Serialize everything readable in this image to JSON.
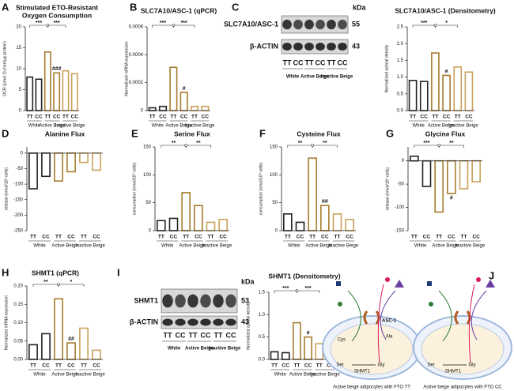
{
  "style": {
    "bar_colors": [
      "#222222",
      "#222222",
      "#a57c2c",
      "#a57c2c",
      "#c9a15a",
      "#c9a15a"
    ],
    "label_colors": [
      "#111111",
      "#e0201b"
    ],
    "transporter_color": "#d9702a"
  },
  "chart_data": [
    {
      "type": "bar",
      "panel": "A",
      "title": [
        "Stimulated ETO-Resistant",
        "Oxygen Consumption"
      ],
      "y_label": "OCR (pmol O₂/min/µg protein)",
      "categories": [
        "TT",
        "CC",
        "TT",
        "CC",
        "TT",
        "CC"
      ],
      "groups": [
        "White",
        "Active Beige",
        "Inactive Beige"
      ],
      "values": [
        8,
        7.5,
        14,
        9,
        9.5,
        8.8
      ],
      "ylim": [
        0,
        20
      ],
      "yticks": [
        0,
        5,
        10,
        15,
        20
      ],
      "bracket": [
        "***",
        "***"
      ],
      "bar_marks": [
        null,
        null,
        null,
        "###",
        null,
        null
      ]
    },
    {
      "type": "bar",
      "panel": "B",
      "title": [
        "SLC7A10/ASC-1 (qPCR)"
      ],
      "y_label": "Normalized mRNA expression",
      "categories": [
        "TT",
        "CC",
        "TT",
        "CC",
        "TT",
        "CC"
      ],
      "groups": [
        "White",
        "Active Beige",
        "Inactive Beige"
      ],
      "values": [
        2e-05,
        3e-05,
        0.00031,
        0.00013,
        3e-05,
        3e-05
      ],
      "ylim": [
        0,
        0.0006
      ],
      "yticks": [
        0,
        0.0002,
        0.0004,
        0.0006
      ],
      "bracket": [
        "***",
        "***"
      ],
      "bar_marks": [
        null,
        null,
        null,
        "#",
        null,
        null
      ]
    },
    {
      "type": "bar",
      "panel": "",
      "title": [
        "SLC7A10/ASC-1 (Densitometry)"
      ],
      "y_label": "Normalized optical density",
      "categories": [
        "TT",
        "CC",
        "TT",
        "CC",
        "TT",
        "CC"
      ],
      "groups": [
        "White",
        "Active Beige",
        "Inactive Beige"
      ],
      "values": [
        0.9,
        0.87,
        1.72,
        1.05,
        1.3,
        1.15
      ],
      "ylim": [
        0,
        2.5
      ],
      "yticks": [
        {
          "value": 0,
          "label": "0.0"
        },
        0.5,
        {
          "value": 1,
          "label": "1.0"
        },
        1.5,
        {
          "value": 2,
          "label": "2.0"
        },
        2.5
      ],
      "bracket": [
        "***",
        "*"
      ],
      "bar_marks": [
        null,
        null,
        null,
        "#",
        null,
        null
      ]
    },
    {
      "type": "bar",
      "panel": "D",
      "title": [
        "Alanine Flux"
      ],
      "y_label": "release (nmol/10⁶ cells)",
      "categories": [
        "TT",
        "CC",
        "TT",
        "CC",
        "TT",
        "CC"
      ],
      "groups": [
        "White",
        "Active Beige",
        "Inactive Beige"
      ],
      "values": [
        -115,
        -75,
        -90,
        -60,
        -30,
        -55
      ],
      "ylim": [
        -250,
        20
      ],
      "yticks": [
        0,
        -50,
        -100,
        -150,
        -200,
        -250
      ]
    },
    {
      "type": "bar",
      "panel": "E",
      "title": [
        "Serine Flux"
      ],
      "y_label": "consumption (nmol/10⁶ cells)",
      "categories": [
        "TT",
        "CC",
        "TT",
        "CC",
        "TT",
        "CC"
      ],
      "groups": [
        "White",
        "Active Beige",
        "Inactive Beige"
      ],
      "values": [
        18,
        22,
        68,
        45,
        15,
        20
      ],
      "ylim": [
        0,
        150
      ],
      "yticks": [
        0,
        50,
        100,
        150
      ],
      "bracket": [
        "**",
        "**"
      ]
    },
    {
      "type": "bar",
      "panel": "F",
      "title": [
        "Cysteine Flux"
      ],
      "y_label": "consumption (nmol/10⁶ cells)",
      "categories": [
        "TT",
        "CC",
        "TT",
        "CC",
        "TT",
        "CC"
      ],
      "groups": [
        "White",
        "Active Beige",
        "Inactive Beige"
      ],
      "values": [
        30,
        15,
        130,
        45,
        30,
        20
      ],
      "ylim": [
        0,
        150
      ],
      "yticks": [
        0,
        50,
        100,
        150
      ],
      "bracket": [
        "**",
        "**"
      ],
      "bar_marks": [
        null,
        null,
        null,
        "##",
        null,
        null
      ]
    },
    {
      "type": "bar",
      "panel": "G",
      "title": [
        "Glycine Flux"
      ],
      "y_label": "release (nmol/10⁶ cells)",
      "categories": [
        "TT",
        "CC",
        "TT",
        "CC",
        "TT",
        "CC"
      ],
      "groups": [
        "White",
        "Active Beige",
        "Inactive Beige"
      ],
      "values": [
        10,
        -55,
        -110,
        -70,
        -60,
        -45
      ],
      "ylim": [
        -150,
        30
      ],
      "yticks": [
        0,
        -50,
        -100,
        -150
      ],
      "bracket": [
        "***",
        "**"
      ],
      "bar_marks": [
        null,
        null,
        null,
        "#",
        null,
        null
      ]
    },
    {
      "type": "bar",
      "panel": "H",
      "title": [
        "SHMT1 (qPCR)"
      ],
      "y_label": "Normalized mRNA expression",
      "categories": [
        "TT",
        "CC",
        "TT",
        "CC",
        "TT",
        "CC"
      ],
      "groups": [
        "White",
        "Active Beige",
        "Inactive Beige"
      ],
      "values": [
        0.04,
        0.07,
        0.165,
        0.045,
        0.085,
        0.025
      ],
      "ylim": [
        0,
        0.2
      ],
      "yticks": [
        {
          "value": 0,
          "label": "0.00"
        },
        0.05,
        {
          "value": 0.1,
          "label": "0.10"
        },
        0.15,
        {
          "value": 0.2,
          "label": "0.20"
        }
      ],
      "bracket": [
        "**",
        "*"
      ],
      "bar_marks": [
        null,
        null,
        null,
        "##",
        null,
        null
      ]
    },
    {
      "type": "bar",
      "panel": "",
      "title": [
        "SHMT1 (Densitometry)"
      ],
      "y_label": "Normalized optical density",
      "categories": [
        "TT",
        "CC",
        "TT",
        "CC",
        "TT",
        "CC"
      ],
      "groups": [
        "White",
        "Active Beige",
        "Inactive Beige"
      ],
      "values": [
        0.17,
        0.15,
        0.82,
        0.5,
        0.35,
        0.17
      ],
      "ylim": [
        0,
        1.5
      ],
      "yticks": [
        {
          "value": 0,
          "label": "0.0"
        },
        0.5,
        {
          "value": 1,
          "label": "1.0"
        },
        1.5
      ],
      "bracket": [
        "***",
        "***"
      ],
      "bar_marks": [
        null,
        null,
        null,
        "#",
        null,
        null
      ]
    }
  ],
  "blots": [
    {
      "panel": "C",
      "unit": "kDa",
      "rows": [
        {
          "label": "SLC7A10/ASC-1",
          "size": "55"
        },
        {
          "label": "β-ACTIN",
          "size": "43"
        }
      ],
      "lanes": [
        "TT",
        "CC",
        "TT",
        "CC",
        "TT",
        "CC"
      ],
      "groups": [
        "White",
        "Active Beige",
        "Inactive Beige"
      ]
    },
    {
      "panel": "I",
      "unit": "kDa",
      "rows": [
        {
          "label": "SHMT1",
          "size": "53"
        },
        {
          "label": "β-ACTIN",
          "size": "43"
        }
      ],
      "lanes": [
        "TT",
        "CC",
        "TT",
        "CC",
        "TT",
        "CC"
      ],
      "groups": [
        "White",
        "Active Beige",
        "Inactive Beige"
      ]
    }
  ],
  "diagram": {
    "panel": "J",
    "cells": [
      {
        "transporter": "ASC-1",
        "cys": "Cys",
        "ala": "Ala",
        "ser": "Ser",
        "enzyme": "SHMT1",
        "gly": "Gly",
        "caption": "Active beige adipocytes with FTO TT"
      },
      {
        "ser": "Ser",
        "enzyme": "SHMT1",
        "gly": "Gly",
        "caption": "Active beige adipocytes with FTO CC"
      }
    ]
  }
}
